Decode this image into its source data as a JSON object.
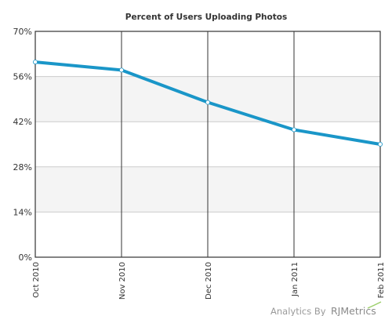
{
  "chart_data": {
    "type": "line",
    "title": "Percent of Users Uploading Photos",
    "xlabel": "",
    "ylabel": "",
    "categories": [
      "Oct 2010",
      "Nov 2010",
      "Dec 2010",
      "Jan 2011",
      "Feb 2011"
    ],
    "y_tick_labels": [
      "0%",
      "14%",
      "28%",
      "42%",
      "56%",
      "70%"
    ],
    "ylim": [
      0,
      70
    ],
    "grid": true,
    "series": [
      {
        "values": [
          60.5,
          58.0,
          48.0,
          39.5,
          35.0
        ]
      }
    ],
    "colors": {
      "line": "#1a96c8",
      "band": "#f4f4f4",
      "grid": "#cccccc",
      "axis": "#333333"
    }
  },
  "footer": {
    "credit": "Analytics By",
    "brand": "RJMetrics"
  }
}
